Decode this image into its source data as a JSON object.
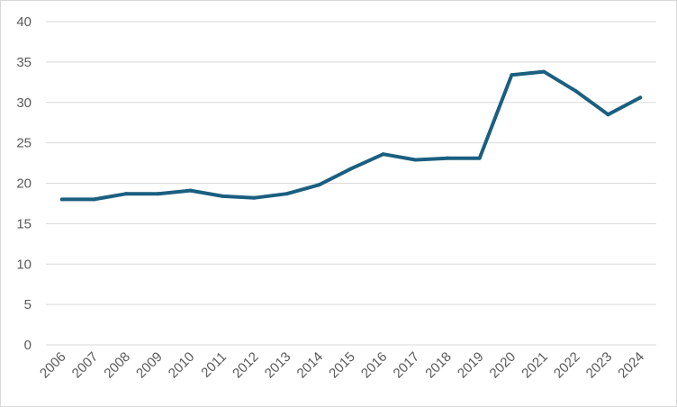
{
  "chart_data": {
    "type": "line",
    "title": "",
    "xlabel": "",
    "ylabel": "",
    "x": [
      "2006",
      "2007",
      "2008",
      "2009",
      "2010",
      "2011",
      "2012",
      "2013",
      "2014",
      "2015",
      "2016",
      "2017",
      "2018",
      "2019",
      "2020",
      "2021",
      "2022",
      "2023",
      "2024"
    ],
    "series": [
      {
        "values": [
          18.0,
          18.0,
          18.7,
          18.7,
          19.1,
          18.4,
          18.2,
          18.7,
          19.8,
          21.8,
          23.6,
          22.9,
          23.1,
          23.1,
          33.4,
          33.8,
          31.4,
          28.5,
          30.6
        ]
      }
    ],
    "ylim": [
      0,
      40
    ],
    "yticks": [
      "0",
      "5",
      "10",
      "15",
      "20",
      "25",
      "30",
      "35",
      "40"
    ],
    "grid": true,
    "line_color": "#1b5f80",
    "grid_color": "#d9d9d9"
  }
}
